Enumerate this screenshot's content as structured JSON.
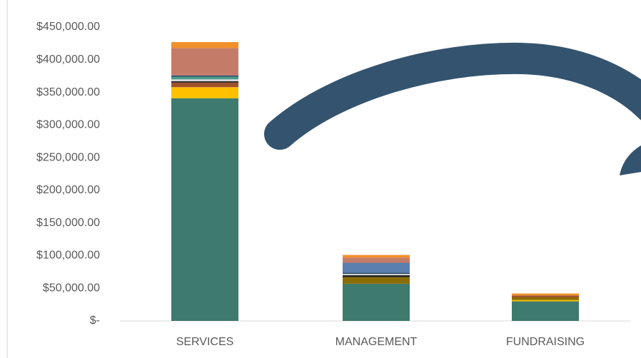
{
  "chart_data": {
    "type": "stacked-bar",
    "categories": [
      "SERVICES",
      "MANAGEMENT",
      "FUNDRAISING"
    ],
    "series": [
      {
        "color": "#3e7a6d",
        "values": [
          341000,
          57000,
          30000
        ]
      },
      {
        "color": "#ffc000",
        "values": [
          17000,
          0,
          2000
        ]
      },
      {
        "color": "#8a6d00",
        "values": [
          0,
          10000,
          4000
        ]
      },
      {
        "color": "#a0522d",
        "values": [
          7000,
          0,
          3000
        ]
      },
      {
        "color": "#222222",
        "values": [
          2000,
          3000,
          0
        ]
      },
      {
        "color": "#d9d9d9",
        "values": [
          3000,
          2000,
          0
        ]
      },
      {
        "color": "#4a9a8a",
        "values": [
          4000,
          0,
          0
        ]
      },
      {
        "color": "#2f4a6b",
        "values": [
          2000,
          2000,
          0
        ]
      },
      {
        "color": "#5b7fae",
        "values": [
          0,
          15000,
          0
        ]
      },
      {
        "color": "#c47b68",
        "values": [
          42000,
          8000,
          0
        ]
      },
      {
        "color": "#f0902a",
        "values": [
          9000,
          4000,
          3000
        ]
      }
    ],
    "ylim": [
      0,
      450000
    ],
    "yticks": [
      {
        "value": 0,
        "label": "$-"
      },
      {
        "value": 50000,
        "label": "$50,000.00"
      },
      {
        "value": 100000,
        "label": "$100,000.00"
      },
      {
        "value": 150000,
        "label": "$150,000.00"
      },
      {
        "value": 200000,
        "label": "$200,000.00"
      },
      {
        "value": 250000,
        "label": "$250,000.00"
      },
      {
        "value": 300000,
        "label": "$300,000.00"
      },
      {
        "value": 350000,
        "label": "$350,000.00"
      },
      {
        "value": 400000,
        "label": "$400,000.00"
      },
      {
        "value": 450000,
        "label": "$450,000.00"
      }
    ]
  }
}
